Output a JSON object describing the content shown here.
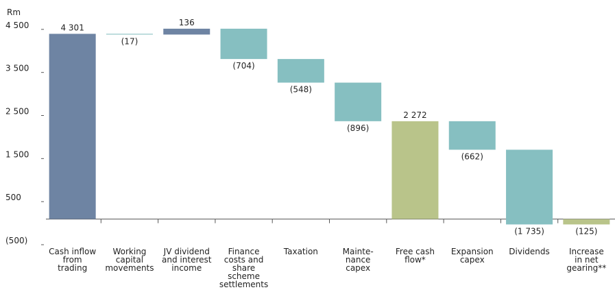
{
  "chart_data": {
    "type": "waterfall",
    "y_label": "Rm",
    "categories": [
      "Cash inflow\nfrom\ntrading",
      "Working\ncapital\nmovements",
      "JV dividend\nand interest\nincome",
      "Finance\ncosts and\nshare\nscheme\nsettlements",
      "Taxation",
      "Mainte-\nnance\ncapex",
      "Free cash\nflow*",
      "Expansion\ncapex",
      "Dividends",
      "Increase\nin net\ngearing**"
    ],
    "values": [
      4301,
      -17,
      136,
      -704,
      -548,
      -896,
      2272,
      -662,
      -1735,
      -125
    ],
    "value_labels": [
      "4 301",
      "(17)",
      "136",
      "(704)",
      "(548)",
      "(896)",
      "2 272",
      "(662)",
      "(1 735)",
      "(125)"
    ],
    "measure": [
      "absolute",
      "relative",
      "relative",
      "relative",
      "relative",
      "relative",
      "absolute",
      "relative",
      "relative",
      "absolute"
    ],
    "colors": [
      "#6e84a3",
      "#86bfc1",
      "#6e84a3",
      "#86bfc1",
      "#86bfc1",
      "#86bfc1",
      "#b9c48a",
      "#86bfc1",
      "#86bfc1",
      "#b9c48a"
    ],
    "ylim": [
      -500,
      4800
    ],
    "yticks": [
      {
        "value": -500,
        "label": "(500)"
      },
      {
        "value": 500,
        "label": "500"
      },
      {
        "value": 1500,
        "label": "1 500"
      },
      {
        "value": 2500,
        "label": "2 500"
      },
      {
        "value": 3500,
        "label": "3 500"
      },
      {
        "value": 4500,
        "label": "4 500"
      }
    ]
  }
}
